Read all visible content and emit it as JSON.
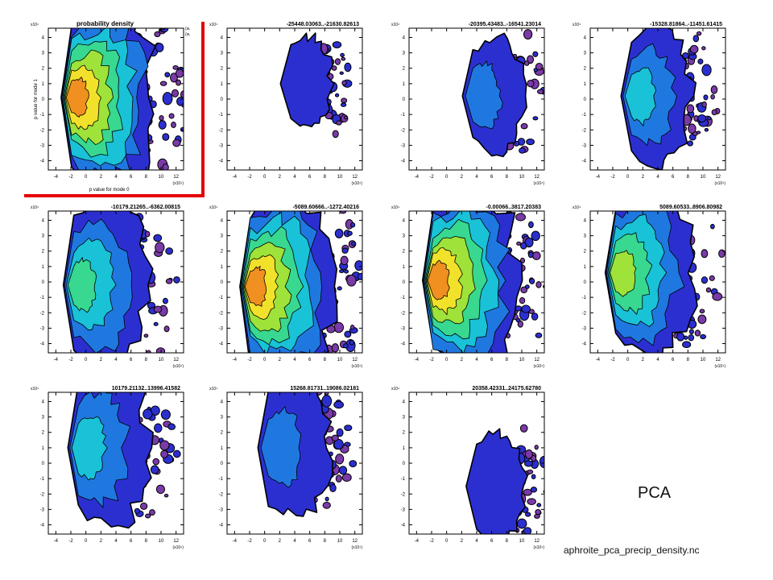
{
  "page": {
    "pca_label": "PCA",
    "footer_filename": "aphroite_pca_precip_density.nc"
  },
  "chart_data": [
    {
      "type": "heatmap",
      "title": "probability density",
      "xlabel": "p value for mode 0",
      "ylabel": "p value for mode 1",
      "x_multiplier": "(x10⁴)",
      "y_multiplier": "x10⁴",
      "units": [
        "(sum)",
        "(sum)"
      ],
      "x_ticks": [
        -4,
        -2,
        0,
        2,
        4,
        6,
        8,
        10,
        12
      ],
      "y_ticks": [
        -4,
        -3,
        -2,
        -1,
        0,
        1,
        2,
        3,
        4
      ],
      "xlim": [
        -5,
        13
      ],
      "ylim": [
        -4.6,
        4.6
      ],
      "peak": {
        "x": -1.9,
        "y": 0.1
      },
      "peak_level": 7,
      "spread": 1.0,
      "highlighted": true
    },
    {
      "type": "heatmap",
      "title": "-25448.03063..-21630.82613",
      "x_multiplier": "(x10⁴)",
      "y_multiplier": "x10⁴",
      "x_ticks": [
        -4,
        -2,
        0,
        2,
        4,
        6,
        8,
        10,
        12
      ],
      "y_ticks": [
        -4,
        -3,
        -2,
        -1,
        0,
        1,
        2,
        3,
        4
      ],
      "xlim": [
        -5,
        13
      ],
      "ylim": [
        -4.6,
        4.6
      ],
      "peak": {
        "x": 3.5,
        "y": 1.0
      },
      "peak_level": 1,
      "spread": 0.35
    },
    {
      "type": "heatmap",
      "title": "-20395.43483..-16541.23014",
      "x_multiplier": "(x10⁴)",
      "y_multiplier": "x10⁴",
      "x_ticks": [
        -4,
        -2,
        0,
        2,
        4,
        6,
        8,
        10,
        12
      ],
      "y_ticks": [
        -4,
        -3,
        -2,
        -1,
        0,
        1,
        2,
        3,
        4
      ],
      "xlim": [
        -5,
        13
      ],
      "ylim": [
        -4.6,
        4.6
      ],
      "peak": {
        "x": 3.5,
        "y": 0.2
      },
      "peak_level": 2,
      "spread": 0.5
    },
    {
      "type": "heatmap",
      "title": "-15328.81864..-11451.61415",
      "x_multiplier": "(x10⁴)",
      "y_multiplier": "x10⁴",
      "x_ticks": [
        -4,
        -2,
        0,
        2,
        4,
        6,
        8,
        10,
        12
      ],
      "y_ticks": [
        -4,
        -3,
        -2,
        -1,
        0,
        1,
        2,
        3,
        4
      ],
      "xlim": [
        -5,
        13
      ],
      "ylim": [
        -4.6,
        4.6
      ],
      "peak": {
        "x": 0.5,
        "y": 0.2
      },
      "peak_level": 3,
      "spread": 0.65
    },
    {
      "type": "heatmap",
      "title": "-10179.21265..-6362.00815",
      "x_multiplier": "(x10⁴)",
      "y_multiplier": "x10⁴",
      "x_ticks": [
        -4,
        -2,
        0,
        2,
        4,
        6,
        8,
        10,
        12
      ],
      "y_ticks": [
        -4,
        -3,
        -2,
        -1,
        0,
        1,
        2,
        3,
        4
      ],
      "xlim": [
        -5,
        13
      ],
      "ylim": [
        -4.6,
        4.6
      ],
      "peak": {
        "x": -1.6,
        "y": -0.2
      },
      "peak_level": 4,
      "spread": 0.85
    },
    {
      "type": "heatmap",
      "title": "-5089.60666..-1272.40216",
      "x_multiplier": "(x10⁴)",
      "y_multiplier": "x10⁴",
      "x_ticks": [
        -4,
        -2,
        0,
        2,
        4,
        6,
        8,
        10,
        12
      ],
      "y_ticks": [
        -4,
        -3,
        -2,
        -1,
        0,
        1,
        2,
        3,
        4
      ],
      "xlim": [
        -5,
        13
      ],
      "ylim": [
        -4.6,
        4.6
      ],
      "peak": {
        "x": -1.9,
        "y": -0.3
      },
      "peak_level": 7,
      "spread": 1.0
    },
    {
      "type": "heatmap",
      "title": "-0.00066..3817.20383",
      "x_multiplier": "(x10⁴)",
      "y_multiplier": "x10⁴",
      "x_ticks": [
        -4,
        -2,
        0,
        2,
        4,
        6,
        8,
        10,
        12
      ],
      "y_ticks": [
        -4,
        -3,
        -2,
        -1,
        0,
        1,
        2,
        3,
        4
      ],
      "xlim": [
        -5,
        13
      ],
      "ylim": [
        -4.6,
        4.6
      ],
      "peak": {
        "x": -1.8,
        "y": 0.1
      },
      "peak_level": 7,
      "spread": 1.0
    },
    {
      "type": "heatmap",
      "title": "5089.60533..8906.80982",
      "x_multiplier": "(x10⁴)",
      "y_multiplier": "x10⁴",
      "x_ticks": [
        -4,
        -2,
        0,
        2,
        4,
        6,
        8,
        10,
        12
      ],
      "y_ticks": [
        -4,
        -3,
        -2,
        -1,
        0,
        1,
        2,
        3,
        4
      ],
      "xlim": [
        -5,
        13
      ],
      "ylim": [
        -4.6,
        4.6
      ],
      "peak": {
        "x": -1.6,
        "y": 0.6
      },
      "peak_level": 5,
      "spread": 0.9
    },
    {
      "type": "heatmap",
      "title": "10179.21132..13996.41582",
      "x_multiplier": "(x10⁴)",
      "y_multiplier": "x10⁴",
      "x_ticks": [
        -4,
        -2,
        0,
        2,
        4,
        6,
        8,
        10,
        12
      ],
      "y_ticks": [
        -4,
        -3,
        -2,
        -1,
        0,
        1,
        2,
        3,
        4
      ],
      "xlim": [
        -5,
        13
      ],
      "ylim": [
        -4.6,
        4.6
      ],
      "peak": {
        "x": -1.0,
        "y": 1.0
      },
      "peak_level": 3,
      "spread": 0.8
    },
    {
      "type": "heatmap",
      "title": "15268.81731..19086.02181",
      "x_multiplier": "(x10⁴)",
      "y_multiplier": "x10⁴",
      "x_ticks": [
        -4,
        -2,
        0,
        2,
        4,
        6,
        8,
        10,
        12
      ],
      "y_ticks": [
        -4,
        -3,
        -2,
        -1,
        0,
        1,
        2,
        3,
        4
      ],
      "xlim": [
        -5,
        13
      ],
      "ylim": [
        -4.6,
        4.6
      ],
      "peak": {
        "x": 0.5,
        "y": 1.0
      },
      "peak_level": 2,
      "spread": 0.65
    },
    {
      "type": "heatmap",
      "title": "20358.42331..24175.62780",
      "x_multiplier": "(x10⁴)",
      "y_multiplier": "x10⁴",
      "x_ticks": [
        -4,
        -2,
        0,
        2,
        4,
        6,
        8,
        10,
        12
      ],
      "y_ticks": [
        -4,
        -3,
        -2,
        -1,
        0,
        1,
        2,
        3,
        4
      ],
      "xlim": [
        -5,
        13
      ],
      "ylim": [
        -4.6,
        4.6
      ],
      "peak": {
        "x": 4.0,
        "y": -1.5
      },
      "peak_level": 1,
      "spread": 0.45
    }
  ],
  "colors": {
    "level_1": "#7a3aa8",
    "level_2": "#2c2fd0",
    "level_3": "#1f78e0",
    "level_4": "#19c2d6",
    "level_5": "#38d890",
    "level_6": "#9ee23a",
    "level_7": "#f2e12a",
    "level_8": "#f09020",
    "level_9": "#e21818",
    "highlight_border": "#e60000"
  }
}
